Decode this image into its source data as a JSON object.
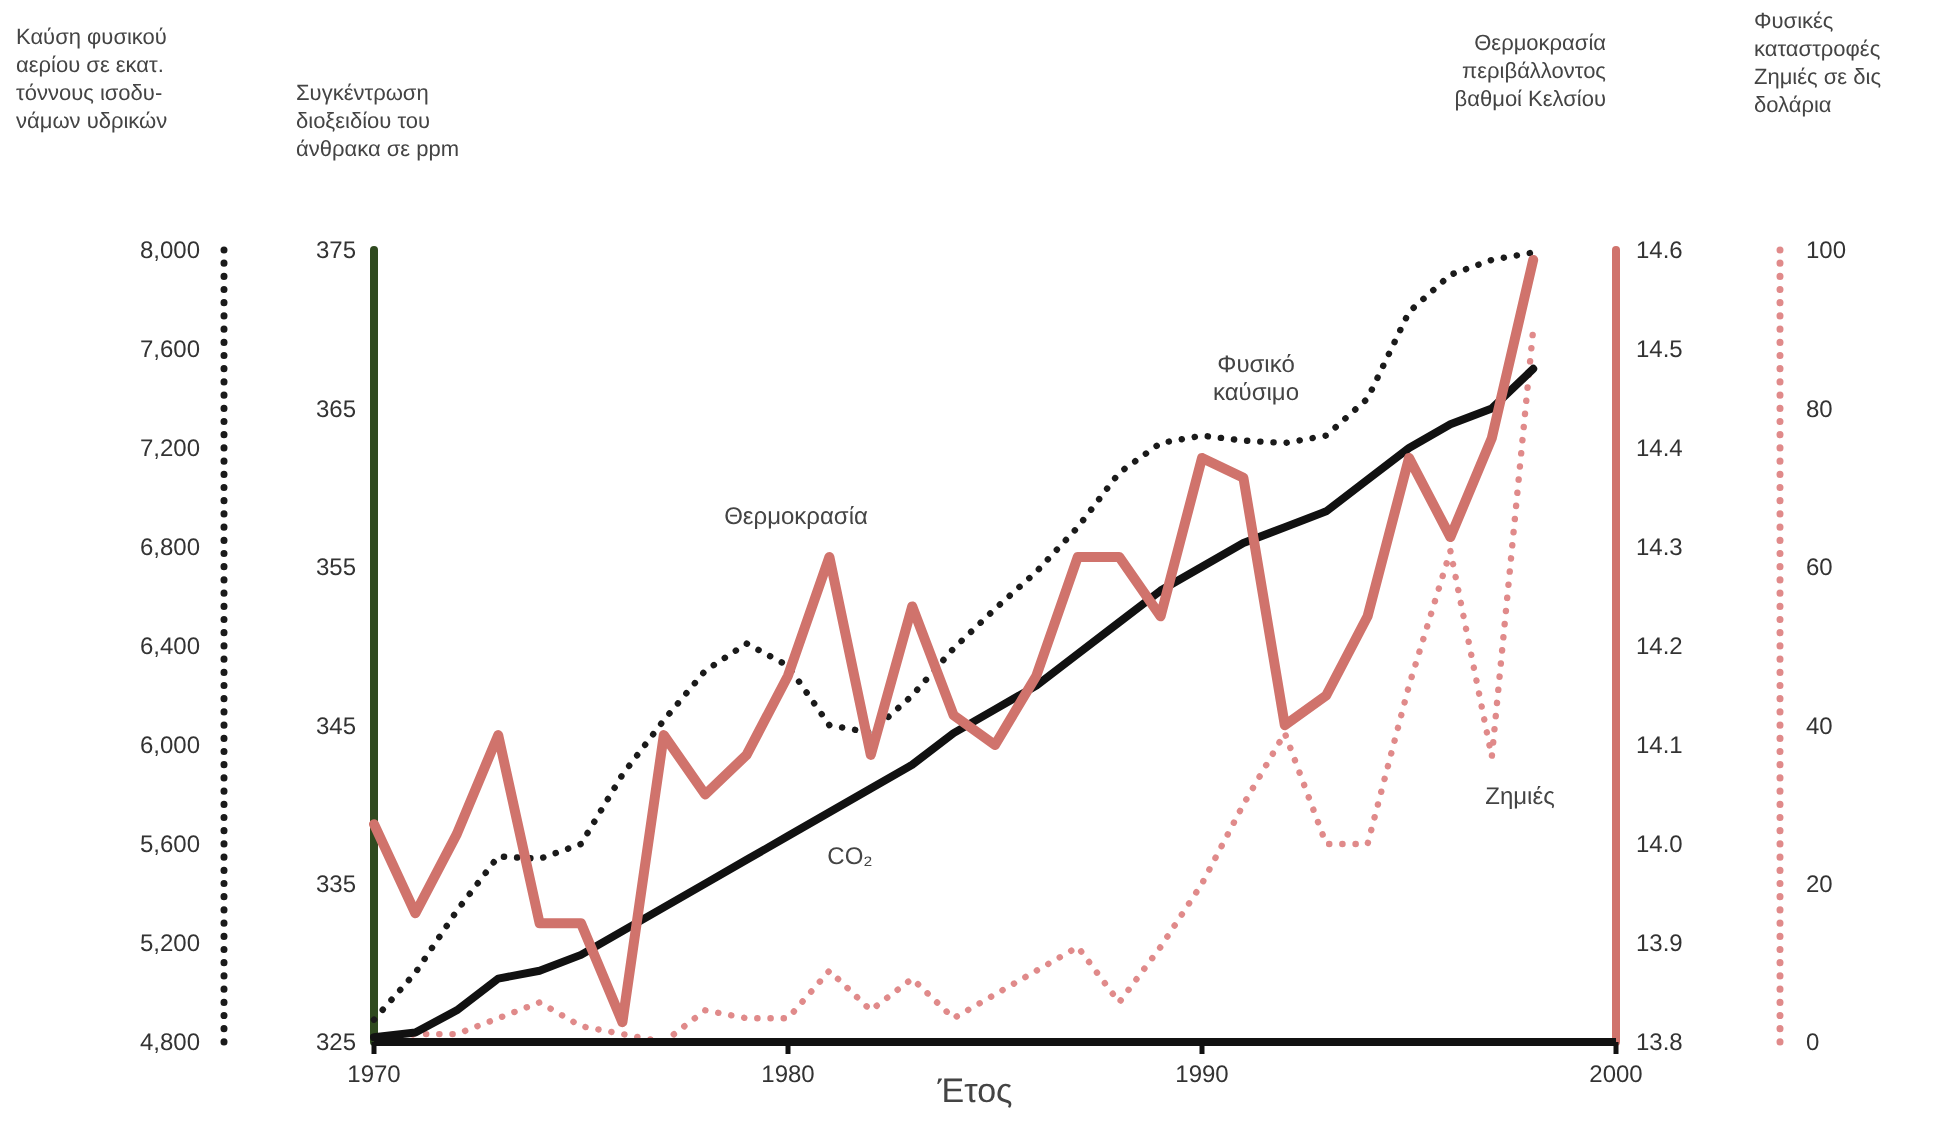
{
  "chart_data": [
    {
      "type": "line",
      "xlabel": "Έτος",
      "ylabel": "Καύση φυσικού\nαερίου σε εκατ.\nτόννους ισοδυ-\nνάμων υδρικών",
      "y2label": "Συγκέντρωση\nδιοξειδίου του\nάνθρακα σε ppm",
      "y3label": "Θερμοκρασία\nπεριβάλλοντος\nβαθμοί Κελσίου",
      "x": [
        1970,
        1971,
        1972,
        1973,
        1974,
        1975,
        1976,
        1977,
        1978,
        1979,
        1980,
        1981,
        1982,
        1983,
        1984,
        1985,
        1986,
        1987,
        1988,
        1989,
        1990,
        1991,
        1992,
        1993,
        1994,
        1995,
        1996,
        1997,
        1998
      ],
      "xlim": [
        1970,
        2000
      ],
      "xticks": [
        1970,
        1980,
        1990,
        2000
      ],
      "ylim": [
        4800,
        8000
      ],
      "yticks": [
        {
          "value": 4800,
          "label": "4,800"
        },
        {
          "value": 5200,
          "label": "5,200"
        },
        {
          "value": 5600,
          "label": "5,600"
        },
        {
          "value": 6000,
          "label": "6,000"
        },
        {
          "value": 6400,
          "label": "6,400"
        },
        {
          "value": 6800,
          "label": "6,800"
        },
        {
          "value": 7200,
          "label": "7,200"
        },
        {
          "value": 7600,
          "label": "7,600"
        },
        {
          "value": 8000,
          "label": "8,000"
        }
      ],
      "y2lim": [
        325,
        375
      ],
      "y2ticks": [
        325,
        335,
        345,
        355,
        365,
        375
      ],
      "y3lim": [
        13.8,
        14.6
      ],
      "y3ticks": [
        13.8,
        13.9,
        {
          "value": 14,
          "label": "14.0"
        },
        14.1,
        14.2,
        14.3,
        14.4,
        14.5,
        14.6
      ],
      "grid": false,
      "marker": "none",
      "series": [
        {
          "name": "Φυσικό\nκαύσιμο",
          "color": "#1a1a1a",
          "line_style": "dotted",
          "values": [
            4890,
            5080,
            5330,
            5550,
            5540,
            5600,
            5880,
            6100,
            6300,
            6410,
            6320,
            6080,
            6050,
            6200,
            6390,
            6550,
            6700,
            6880,
            7100,
            7220,
            7250,
            7230,
            7220,
            7250,
            7400,
            7750,
            7900,
            7960,
            7990
          ]
        },
        {
          "name": "CO₂",
          "color": "#111111",
          "line_style": "solid",
          "axis": "y2",
          "values": [
            325.3,
            325.6,
            327,
            329,
            329.5,
            330.5,
            332,
            333.5,
            335,
            336.5,
            338,
            339.5,
            341,
            342.5,
            344.5,
            346,
            347.5,
            349.5,
            351.5,
            353.5,
            355,
            356.5,
            357.5,
            358.5,
            360.5,
            362.5,
            364,
            365,
            367.5
          ]
        },
        {
          "name": "Θερμοκρασία",
          "color": "#d0736c",
          "line_style": "solid",
          "axis": "y3",
          "values": [
            14.02,
            13.93,
            14.01,
            14.11,
            13.92,
            13.92,
            13.82,
            14.11,
            14.05,
            14.09,
            14.17,
            14.29,
            14.09,
            14.24,
            14.13,
            14.1,
            14.17,
            14.29,
            14.29,
            14.23,
            14.39,
            14.37,
            14.12,
            14.15,
            14.23,
            14.39,
            14.31,
            14.41,
            14.59
          ]
        }
      ]
    },
    {
      "type": "line",
      "ylabel": "Φυσικές\nκαταστροφές\nΖημιές σε δις\nδολάρια",
      "x": [
        1970,
        1971,
        1972,
        1973,
        1974,
        1975,
        1976,
        1977,
        1978,
        1979,
        1980,
        1981,
        1982,
        1983,
        1984,
        1985,
        1986,
        1987,
        1988,
        1989,
        1990,
        1991,
        1992,
        1993,
        1994,
        1995,
        1996,
        1997,
        1998
      ],
      "xlim": [
        1970,
        2000
      ],
      "ylim": [
        0,
        100
      ],
      "yticks": [
        0,
        20,
        40,
        60,
        80,
        100
      ],
      "tick_labels": "y",
      "series": [
        {
          "name": "Ζημιές",
          "color": "#e08a8a",
          "line_style": "dotted",
          "values": [
            0,
            1,
            1,
            3,
            5,
            2,
            1,
            0,
            4,
            3,
            3,
            9,
            4,
            8,
            3,
            6,
            9,
            12,
            5,
            12,
            20,
            30,
            39,
            25,
            25,
            45,
            62,
            36,
            90
          ]
        }
      ]
    }
  ]
}
